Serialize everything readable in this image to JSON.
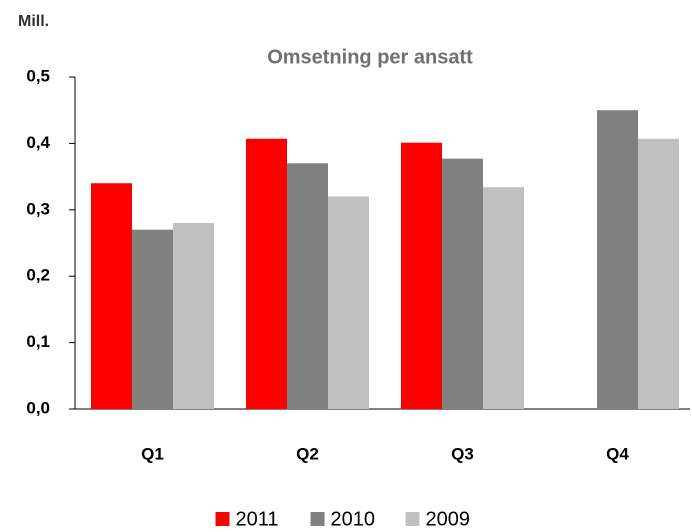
{
  "chart_data": {
    "type": "bar",
    "title": "Omsetning per ansatt",
    "y_axis_label": "Mill.",
    "categories": [
      "Q1",
      "Q2",
      "Q3",
      "Q4"
    ],
    "series": [
      {
        "name": "2011",
        "color": "#ff0000",
        "values": [
          0.34,
          0.407,
          0.401,
          null
        ]
      },
      {
        "name": "2010",
        "color": "#808080",
        "values": [
          0.27,
          0.37,
          0.377,
          0.45
        ]
      },
      {
        "name": "2009",
        "color": "#c0c0c0",
        "values": [
          0.28,
          0.32,
          0.334,
          0.407
        ]
      }
    ],
    "ylim": [
      0,
      0.5
    ],
    "yticks": [
      {
        "value": 0,
        "label": "0,0"
      },
      {
        "value": 0.1,
        "label": "0,1"
      },
      {
        "value": 0.2,
        "label": "0,2"
      },
      {
        "value": 0.3,
        "label": "0,3"
      },
      {
        "value": 0.4,
        "label": "0,4"
      },
      {
        "value": 0.5,
        "label": "0,5"
      }
    ],
    "legend": "bottom"
  }
}
